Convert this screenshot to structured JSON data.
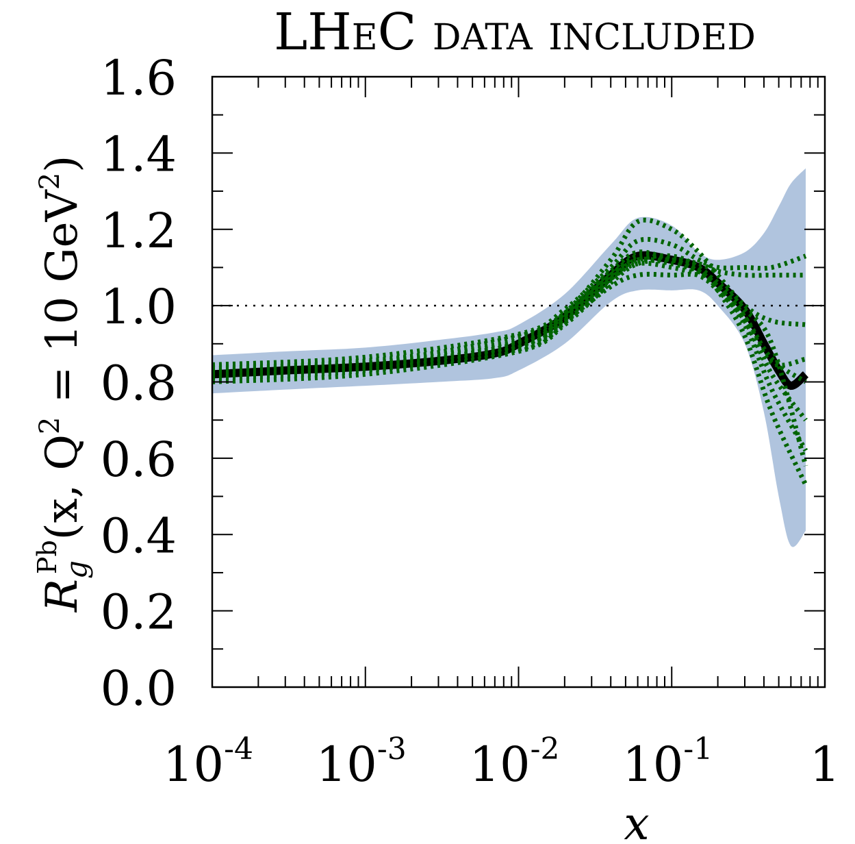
{
  "chart_data": {
    "type": "line",
    "title": "LHeC data included",
    "title_color": "#1a1aff",
    "xlabel": "x",
    "ylabel": "R_g^Pb(x, Q^2 = 10 GeV^2)",
    "ylabel_parts": {
      "R": "R",
      "sub": "g",
      "sup": "Pb",
      "rest": "(x, Q",
      "sq": "2",
      "eq": " = 10 GeV",
      "sq2": "2",
      "close": ")"
    },
    "x_scale": "log",
    "xlim": [
      0.0001,
      1
    ],
    "ylim": [
      0.0,
      1.6
    ],
    "x_ticks": [
      {
        "value": 0.0001,
        "base": "10",
        "exp": "-4"
      },
      {
        "value": 0.001,
        "base": "10",
        "exp": "-3"
      },
      {
        "value": 0.01,
        "base": "10",
        "exp": "-2"
      },
      {
        "value": 0.1,
        "base": "10",
        "exp": "-1"
      },
      {
        "value": 1,
        "base": "1",
        "exp": ""
      }
    ],
    "y_ticks": [
      "0.0",
      "0.2",
      "0.4",
      "0.6",
      "0.8",
      "1.0",
      "1.2",
      "1.4",
      "1.6"
    ],
    "reference_line": {
      "y": 1.0,
      "style": "dotted"
    },
    "colors": {
      "band": "#b0c4de",
      "central": "#000000",
      "replicas": "#006400"
    },
    "band": {
      "x": [
        0.0001,
        0.0003,
        0.001,
        0.003,
        0.007,
        0.01,
        0.02,
        0.04,
        0.06,
        0.1,
        0.15,
        0.2,
        0.3,
        0.4,
        0.5,
        0.6,
        0.75
      ],
      "upper": [
        0.87,
        0.88,
        0.89,
        0.91,
        0.93,
        0.95,
        1.03,
        1.16,
        1.23,
        1.21,
        1.14,
        1.12,
        1.14,
        1.19,
        1.26,
        1.32,
        1.36
      ],
      "lower": [
        0.77,
        0.78,
        0.79,
        0.8,
        0.81,
        0.83,
        0.9,
        1.01,
        1.04,
        1.04,
        1.04,
        1.0,
        0.9,
        0.72,
        0.5,
        0.37,
        0.41
      ]
    },
    "series": [
      {
        "style": "solid",
        "x": [
          0.0001,
          0.0003,
          0.001,
          0.003,
          0.007,
          0.01,
          0.02,
          0.04,
          0.06,
          0.1,
          0.15,
          0.2,
          0.3,
          0.4,
          0.5,
          0.6,
          0.75
        ],
        "y": [
          0.82,
          0.83,
          0.84,
          0.855,
          0.875,
          0.9,
          0.97,
          1.08,
          1.13,
          1.12,
          1.1,
          1.06,
          0.99,
          0.9,
          0.83,
          0.79,
          0.82
        ]
      },
      {
        "style": "dotted",
        "x": [
          0.0001,
          0.001,
          0.01,
          0.02,
          0.04,
          0.06,
          0.1,
          0.15,
          0.2,
          0.3,
          0.45,
          0.75
        ],
        "y": [
          0.845,
          0.865,
          0.925,
          0.99,
          1.1,
          1.17,
          1.16,
          1.12,
          1.1,
          1.1,
          1.1,
          1.13
        ]
      },
      {
        "style": "dotted",
        "x": [
          0.0001,
          0.001,
          0.01,
          0.02,
          0.04,
          0.06,
          0.1,
          0.15,
          0.2,
          0.3,
          0.45,
          0.75
        ],
        "y": [
          0.8,
          0.82,
          0.88,
          0.95,
          1.06,
          1.11,
          1.12,
          1.11,
          1.09,
          1.08,
          1.08,
          1.08
        ]
      },
      {
        "style": "dotted",
        "x": [
          0.0001,
          0.001,
          0.01,
          0.02,
          0.04,
          0.06,
          0.1,
          0.15,
          0.2,
          0.3,
          0.45,
          0.75
        ],
        "y": [
          0.835,
          0.855,
          0.91,
          0.98,
          1.12,
          1.22,
          1.2,
          1.14,
          1.08,
          1.0,
          0.96,
          0.95
        ]
      },
      {
        "style": "dotted",
        "x": [
          0.0001,
          0.001,
          0.01,
          0.02,
          0.04,
          0.06,
          0.1,
          0.15,
          0.2,
          0.3,
          0.45,
          0.75
        ],
        "y": [
          0.81,
          0.83,
          0.89,
          0.96,
          1.05,
          1.08,
          1.08,
          1.08,
          1.05,
          0.97,
          0.86,
          0.8
        ]
      },
      {
        "style": "dotted",
        "x": [
          0.0001,
          0.001,
          0.01,
          0.02,
          0.04,
          0.06,
          0.1,
          0.15,
          0.2,
          0.3,
          0.45,
          0.75
        ],
        "y": [
          0.84,
          0.85,
          0.92,
          0.98,
          1.09,
          1.14,
          1.12,
          1.1,
          1.05,
          0.95,
          0.78,
          0.62
        ]
      },
      {
        "style": "dotted",
        "x": [
          0.0001,
          0.001,
          0.01,
          0.02,
          0.04,
          0.06,
          0.1,
          0.15,
          0.2,
          0.3,
          0.45,
          0.75
        ],
        "y": [
          0.82,
          0.84,
          0.9,
          0.97,
          1.08,
          1.12,
          1.13,
          1.1,
          1.04,
          0.92,
          0.72,
          0.53
        ]
      },
      {
        "style": "dotted",
        "x": [
          0.0001,
          0.001,
          0.01,
          0.02,
          0.04,
          0.06,
          0.1,
          0.15,
          0.2,
          0.3,
          0.45,
          0.75
        ],
        "y": [
          0.83,
          0.85,
          0.905,
          0.975,
          1.08,
          1.13,
          1.12,
          1.09,
          1.05,
          0.97,
          0.85,
          0.86
        ]
      },
      {
        "style": "dotted",
        "x": [
          0.0001,
          0.001,
          0.01,
          0.02,
          0.04,
          0.06,
          0.1,
          0.15,
          0.2,
          0.3,
          0.45,
          0.75
        ],
        "y": [
          0.825,
          0.845,
          0.895,
          0.965,
          1.07,
          1.11,
          1.1,
          1.08,
          1.04,
          0.96,
          0.82,
          0.7
        ]
      },
      {
        "style": "dotted",
        "x": [
          0.0001,
          0.001,
          0.01,
          0.02,
          0.04,
          0.06,
          0.1,
          0.15,
          0.2,
          0.3,
          0.45,
          0.75
        ],
        "y": [
          0.815,
          0.835,
          0.885,
          0.955,
          1.07,
          1.12,
          1.11,
          1.09,
          1.06,
          0.99,
          0.9,
          0.58
        ]
      }
    ]
  }
}
